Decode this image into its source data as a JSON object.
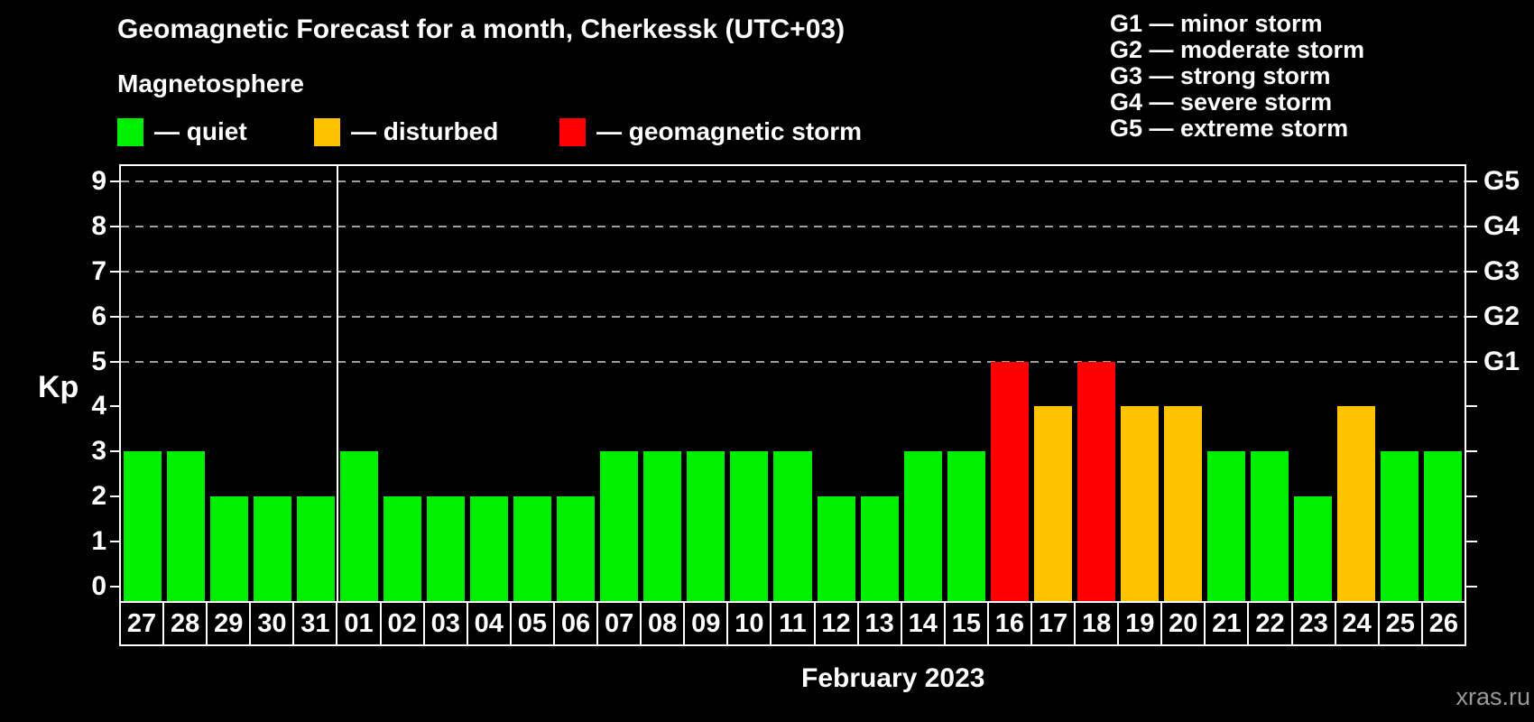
{
  "title": "Geomagnetic Forecast for a month, Cherkessk (UTC+03)",
  "subtitle": "Magnetosphere",
  "legend": {
    "items": [
      {
        "key": "quiet",
        "label": "— quiet",
        "color": "#00ee00"
      },
      {
        "key": "disturbed",
        "label": "— disturbed",
        "color": "#ffc200"
      },
      {
        "key": "storm",
        "label": "— geomagnetic storm",
        "color": "#ff0000"
      }
    ]
  },
  "storm_scale": {
    "lines": [
      "G1 — minor storm",
      "G2 — moderate storm",
      "G3 — strong storm",
      "G4 — severe storm",
      "G5 — extreme storm"
    ]
  },
  "watermark": "xras.ru",
  "chart_data": {
    "type": "bar",
    "title": "Geomagnetic Forecast for a month, Cherkessk (UTC+03)",
    "subtitle": "Magnetosphere",
    "xlabel": "February 2023",
    "ylabel": "Kp",
    "ylim": [
      0,
      9
    ],
    "grid": "dashed horizontal at Kp 5-9",
    "gridlines_at": [
      5,
      6,
      7,
      8,
      9
    ],
    "right_axis": {
      "labels": [
        "G1",
        "G2",
        "G3",
        "G4",
        "G5"
      ],
      "at_kp": [
        5,
        6,
        7,
        8,
        9
      ]
    },
    "categories": [
      "27",
      "28",
      "29",
      "30",
      "31",
      "01",
      "02",
      "03",
      "04",
      "05",
      "06",
      "07",
      "08",
      "09",
      "10",
      "11",
      "12",
      "13",
      "14",
      "15",
      "16",
      "17",
      "18",
      "19",
      "20",
      "21",
      "22",
      "23",
      "24",
      "25",
      "26"
    ],
    "values": [
      3,
      3,
      2,
      2,
      2,
      3,
      2,
      2,
      2,
      2,
      2,
      3,
      3,
      3,
      3,
      3,
      2,
      2,
      3,
      3,
      5,
      4,
      5,
      4,
      4,
      3,
      3,
      2,
      4,
      3,
      3
    ],
    "statuses": [
      "quiet",
      "quiet",
      "quiet",
      "quiet",
      "quiet",
      "quiet",
      "quiet",
      "quiet",
      "quiet",
      "quiet",
      "quiet",
      "quiet",
      "quiet",
      "quiet",
      "quiet",
      "quiet",
      "quiet",
      "quiet",
      "quiet",
      "quiet",
      "storm",
      "disturbed",
      "storm",
      "disturbed",
      "disturbed",
      "quiet",
      "quiet",
      "quiet",
      "disturbed",
      "quiet",
      "quiet"
    ],
    "month_divider_after_index": 4,
    "colors": {
      "quiet": "#00ee00",
      "disturbed": "#ffc200",
      "storm": "#ff0000"
    }
  }
}
